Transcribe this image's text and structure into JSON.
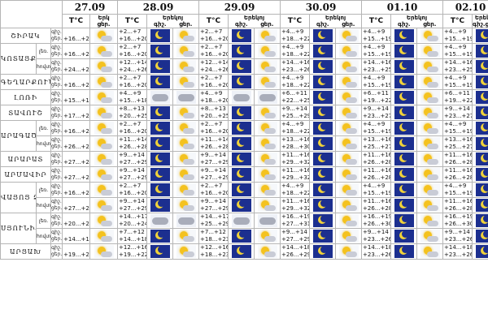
{
  "dates": [
    "27.09",
    "28.09",
    "29.09",
    "30.09",
    "01.10",
    "02.10"
  ],
  "header": {
    "tc": "T°C",
    "first_day_sub": [
      "Երկ",
      "ցեր."
    ],
    "day_sub": [
      "Երեկոյ",
      "գիշ.",
      "ցեր."
    ],
    "tc_label": "T°C"
  },
  "period": {
    "night": "գիշ.",
    "day": "ցեր."
  },
  "regions": [
    {
      "name": "ՇԻՐԱԿ",
      "sub": "",
      "rows": [
        [
          "+16...+20",
          "+2...+7",
          "+16...+20",
          "+2...+7",
          "+16...+20",
          "+4...+9",
          "+18...+22",
          "+4...+9",
          "+15...+19",
          "+4...+9",
          "+15...+19"
        ]
      ]
    },
    {
      "name": "ԿՈՏԱՅՔ",
      "sub": "լեռ.",
      "rows": [
        [
          "+16...+20",
          "+2...+7",
          "+16...+20",
          "+2...+7",
          "+16...+20",
          "+4...+9",
          "+18...+22",
          "+4...+9",
          "+15...+19",
          "+4...+9",
          "+15...+19"
        ]
      ]
    },
    {
      "name": "",
      "sub": "հովտ.",
      "rows": [
        [
          "+24...+26",
          "+12...+14",
          "+24...+26",
          "+12...+14",
          "+24...+26",
          "+14...+16",
          "+23...+26",
          "+14...+16",
          "+23...+25",
          "+14...+16",
          "+23...+25"
        ]
      ]
    },
    {
      "name": "ԳԵՂԱՐՔՈՒՆԻՔ",
      "sub": "",
      "rows": [
        [
          "+16...+20",
          "+2...+7",
          "+16...+20",
          "+2...+7",
          "+16...+20",
          "+4...+9",
          "+18...+22",
          "+4...+9",
          "+15...+19",
          "+4...+9",
          "+15...+19"
        ]
      ]
    },
    {
      "name": "ԼՈՌԻ",
      "sub": "",
      "rows": [
        [
          "+15...+18",
          "+4...+9",
          "+15...+18",
          "+4...+9",
          "+18...+20",
          "+6...+11",
          "+22...+25",
          "+6...+11",
          "+19...+22",
          "+6...+11",
          "+19...+22"
        ]
      ]
    },
    {
      "name": "ՏԱՎՈՒՇ",
      "sub": "",
      "rows": [
        [
          "+17...+21",
          "+8...+13",
          "+20...+25",
          "+8...+13",
          "+20...+25",
          "+9...+14",
          "+25...+29",
          "+9...+14",
          "+23...+27",
          "+9...+14",
          "+23...+27"
        ]
      ]
    },
    {
      "name": "ԱՐԱԳԱԾՈՏՆ",
      "sub": "լեռ.",
      "rows": [
        [
          "+16...+20",
          "+2...+7",
          "+16...+20",
          "+2...+7",
          "+16...+20",
          "+4...+9",
          "+18...+22",
          "+4...+9",
          "+15...+19",
          "+4...+9",
          "+15...+19"
        ]
      ]
    },
    {
      "name": "",
      "sub": "հովտ.",
      "rows": [
        [
          "+26...+28",
          "+11...+14",
          "+26...+28",
          "+11...+14",
          "+26...+28",
          "+13...+16",
          "+28...+30",
          "+13...+16",
          "+25...+27",
          "+13...+16",
          "+25...+27"
        ]
      ]
    },
    {
      "name": "ԱՐԱՐԱՏ",
      "sub": "",
      "rows": [
        [
          "+27...+29",
          "+9...+14",
          "+27...+29",
          "+9...+14",
          "+27...+29",
          "+11...+16",
          "+29...+32",
          "+11...+16",
          "+26...+28",
          "+11...+16",
          "+26...+28"
        ]
      ]
    },
    {
      "name": "ԱՐՄԱՎԻՐ",
      "sub": "",
      "rows": [
        [
          "+27...+29",
          "+9...+14",
          "+27...+29",
          "+9...+14",
          "+27...+29",
          "+11...+16",
          "+29...+32",
          "+11...+16",
          "+26...+28",
          "+11...+16",
          "+26...+28"
        ]
      ]
    },
    {
      "name": "ՎԱՅՈՑ ՁՈՐ",
      "sub": "լեռ.",
      "rows": [
        [
          "+16...+20",
          "+2...+7",
          "+16...+20",
          "+2...+7",
          "+16...+20",
          "+4...+9",
          "+18...+22",
          "+4...+9",
          "+15...+19",
          "+4...+9",
          "+15...+19"
        ]
      ]
    },
    {
      "name": "",
      "sub": "հովտ.",
      "rows": [
        [
          "+27...+29",
          "+9...+14",
          "+27...+29",
          "+9...+14",
          "+27...+29",
          "+11...+16",
          "+29...+32",
          "+11...+16",
          "+26...+28",
          "+11...+16",
          "+26...+28"
        ]
      ]
    },
    {
      "name": "ՍՅՈՒՆԻՔ",
      "sub": "լեռ.",
      "rows": [
        [
          "+20...+24",
          "+14...+17",
          "+20...+24",
          "+14...+17",
          "+25...+29",
          "+16...+19",
          "+27...+31",
          "+16...+19",
          "+26...+30",
          "+16...+19",
          "+26...+30"
        ]
      ]
    },
    {
      "name": "",
      "sub": "հովտ.",
      "rows": [
        [
          "+14...+18",
          "+7...+12",
          "+14...+18",
          "+7...+12",
          "+18...+23",
          "+9...+14",
          "+27...+29",
          "+9...+14",
          "+23...+26",
          "+9...+14",
          "+23...+26"
        ]
      ]
    },
    {
      "name": "ԱՐՑԱԽ",
      "sub": "",
      "rows": [
        [
          "+19...+22",
          "+12...+16",
          "+19...+22",
          "+12...+16",
          "+18...+23",
          "+14...+18",
          "+26...+29",
          "+14...+18",
          "+23...+26",
          "+14...+18",
          "+23...+26"
        ]
      ]
    }
  ],
  "icons": {
    "d27": "sun-cloud-icon",
    "evening": "sun-cloud-icon",
    "night": "moon-icon",
    "day": "sun-cloud-icon"
  },
  "colors": {
    "night_bg": "#1c2f8f",
    "sun": "#f4c21f",
    "grid": "#b5b5b5"
  }
}
